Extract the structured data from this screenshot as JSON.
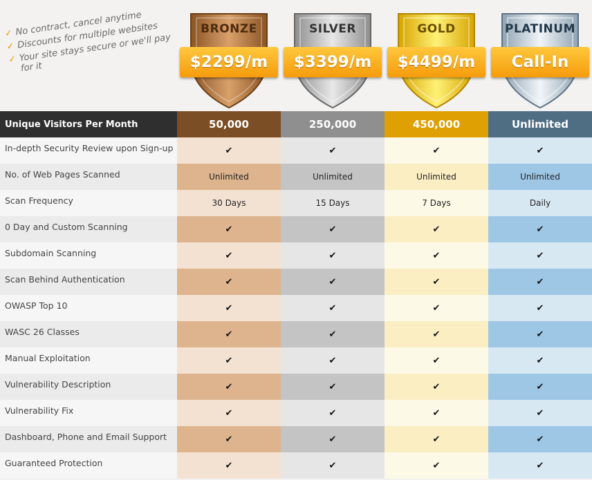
{
  "perks": [
    "No contract, cancel anytime",
    "Discounts for multiple websites",
    "Your site stays secure or we'll pay for it"
  ],
  "plans": [
    {
      "name": "BRONZE",
      "price": "$2299",
      "unit": "/m",
      "visitors": "50,000",
      "accent": "#c58a52"
    },
    {
      "name": "SILVER",
      "price": "$3399",
      "unit": "/m",
      "visitors": "250,000",
      "accent": "#bdbdbd"
    },
    {
      "name": "GOLD",
      "price": "$4499",
      "unit": "/m",
      "visitors": "450,000",
      "accent": "#f2c81e"
    },
    {
      "name": "PLATINUM",
      "price": "Call-In",
      "unit": "",
      "visitors": "Unlimited",
      "accent": "#c9d7e2"
    }
  ],
  "table": {
    "header_label": "Unique Visitors Per Month",
    "rows": [
      {
        "feature": "In-depth Security Review upon Sign-up",
        "values": [
          "✔",
          "✔",
          "✔",
          "✔"
        ]
      },
      {
        "feature": "No. of Web Pages Scanned",
        "values": [
          "Unlimited",
          "Unlimited",
          "Unlimited",
          "Unlimited"
        ]
      },
      {
        "feature": "Scan Frequency",
        "values": [
          "30 Days",
          "15 Days",
          "7 Days",
          "Daily"
        ]
      },
      {
        "feature": "0 Day and Custom Scanning",
        "values": [
          "✔",
          "✔",
          "✔",
          "✔"
        ]
      },
      {
        "feature": "Subdomain Scanning",
        "values": [
          "✔",
          "✔",
          "✔",
          "✔"
        ]
      },
      {
        "feature": "Scan Behind Authentication",
        "values": [
          "✔",
          "✔",
          "✔",
          "✔"
        ]
      },
      {
        "feature": "OWASP Top 10",
        "values": [
          "✔",
          "✔",
          "✔",
          "✔"
        ]
      },
      {
        "feature": "WASC 26 Classes",
        "values": [
          "✔",
          "✔",
          "✔",
          "✔"
        ]
      },
      {
        "feature": "Manual Exploitation",
        "values": [
          "✔",
          "✔",
          "✔",
          "✔"
        ]
      },
      {
        "feature": "Vulnerability Description",
        "values": [
          "✔",
          "✔",
          "✔",
          "✔"
        ]
      },
      {
        "feature": "Vulnerability Fix",
        "values": [
          "✔",
          "✔",
          "✔",
          "✔"
        ]
      },
      {
        "feature": "Dashboard, Phone and Email Support",
        "values": [
          "✔",
          "✔",
          "✔",
          "✔"
        ]
      },
      {
        "feature": "Guaranteed Protection",
        "values": [
          "✔",
          "✔",
          "✔",
          "✔"
        ]
      }
    ]
  }
}
